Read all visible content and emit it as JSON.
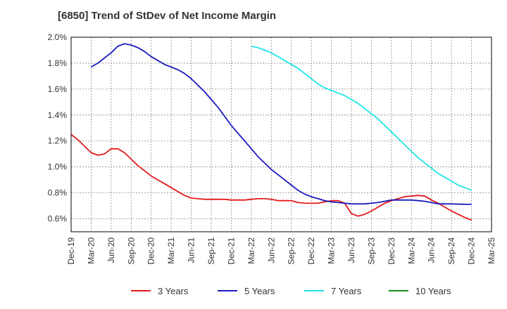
{
  "chart_data": {
    "type": "line",
    "title": "[6850]  Trend of StDev of Net Income Margin",
    "xlabel": "",
    "ylabel": "",
    "x_ticks": [
      "Dec-19",
      "Mar-20",
      "Jun-20",
      "Sep-20",
      "Dec-20",
      "Mar-21",
      "Jun-21",
      "Sep-21",
      "Dec-21",
      "Mar-22",
      "Jun-22",
      "Sep-22",
      "Dec-22",
      "Mar-23",
      "Jun-23",
      "Sep-23",
      "Dec-23",
      "Mar-24",
      "Jun-24",
      "Sep-24",
      "Dec-24",
      "Mar-25"
    ],
    "y_ticks": [
      "0.6%",
      "0.8%",
      "1.0%",
      "1.2%",
      "1.4%",
      "1.6%",
      "1.8%",
      "2.0%"
    ],
    "ylim": [
      0.5,
      2.0
    ],
    "grid": true,
    "legend_position": "bottom",
    "series": [
      {
        "name": "3 Years",
        "color": "#e31a1c",
        "points": [
          [
            "Dec-19",
            1.25
          ],
          [
            "Jan-20",
            1.21
          ],
          [
            "Feb-20",
            1.16
          ],
          [
            "Mar-20",
            1.11
          ],
          [
            "Apr-20",
            1.09
          ],
          [
            "May-20",
            1.1
          ],
          [
            "Jun-20",
            1.14
          ],
          [
            "Jul-20",
            1.14
          ],
          [
            "Aug-20",
            1.11
          ],
          [
            "Sep-20",
            1.06
          ],
          [
            "Oct-20",
            1.01
          ],
          [
            "Nov-20",
            0.97
          ],
          [
            "Dec-20",
            0.93
          ],
          [
            "Jan-21",
            0.9
          ],
          [
            "Feb-21",
            0.87
          ],
          [
            "Mar-21",
            0.84
          ],
          [
            "Apr-21",
            0.81
          ],
          [
            "May-21",
            0.78
          ],
          [
            "Jun-21",
            0.76
          ],
          [
            "Jul-21",
            0.755
          ],
          [
            "Aug-21",
            0.75
          ],
          [
            "Sep-21",
            0.75
          ],
          [
            "Oct-21",
            0.75
          ],
          [
            "Nov-21",
            0.75
          ],
          [
            "Dec-21",
            0.745
          ],
          [
            "Jan-22",
            0.745
          ],
          [
            "Feb-22",
            0.745
          ],
          [
            "Mar-22",
            0.75
          ],
          [
            "Apr-22",
            0.755
          ],
          [
            "May-22",
            0.755
          ],
          [
            "Jun-22",
            0.75
          ],
          [
            "Jul-22",
            0.74
          ],
          [
            "Aug-22",
            0.74
          ],
          [
            "Sep-22",
            0.74
          ],
          [
            "Oct-22",
            0.725
          ],
          [
            "Nov-22",
            0.72
          ],
          [
            "Dec-22",
            0.72
          ],
          [
            "Jan-23",
            0.72
          ],
          [
            "Feb-23",
            0.73
          ],
          [
            "Mar-23",
            0.74
          ],
          [
            "Apr-23",
            0.74
          ],
          [
            "May-23",
            0.72
          ],
          [
            "Jun-23",
            0.64
          ],
          [
            "Jul-23",
            0.62
          ],
          [
            "Aug-23",
            0.635
          ],
          [
            "Sep-23",
            0.66
          ],
          [
            "Oct-23",
            0.69
          ],
          [
            "Nov-23",
            0.72
          ],
          [
            "Dec-23",
            0.74
          ],
          [
            "Jan-24",
            0.755
          ],
          [
            "Feb-24",
            0.77
          ],
          [
            "Mar-24",
            0.775
          ],
          [
            "Apr-24",
            0.78
          ],
          [
            "May-24",
            0.775
          ],
          [
            "Jun-24",
            0.745
          ],
          [
            "Jul-24",
            0.72
          ],
          [
            "Aug-24",
            0.69
          ],
          [
            "Sep-24",
            0.66
          ],
          [
            "Oct-24",
            0.635
          ],
          [
            "Nov-24",
            0.61
          ],
          [
            "Dec-24",
            0.59
          ]
        ]
      },
      {
        "name": "5 Years",
        "color": "#1a1abf",
        "points": [
          [
            "Mar-20",
            1.77
          ],
          [
            "Apr-20",
            1.8
          ],
          [
            "May-20",
            1.84
          ],
          [
            "Jun-20",
            1.88
          ],
          [
            "Jul-20",
            1.93
          ],
          [
            "Aug-20",
            1.95
          ],
          [
            "Sep-20",
            1.94
          ],
          [
            "Oct-20",
            1.92
          ],
          [
            "Nov-20",
            1.89
          ],
          [
            "Dec-20",
            1.85
          ],
          [
            "Jan-21",
            1.82
          ],
          [
            "Feb-21",
            1.79
          ],
          [
            "Mar-21",
            1.77
          ],
          [
            "Apr-21",
            1.75
          ],
          [
            "May-21",
            1.72
          ],
          [
            "Jun-21",
            1.68
          ],
          [
            "Jul-21",
            1.63
          ],
          [
            "Aug-21",
            1.58
          ],
          [
            "Sep-21",
            1.52
          ],
          [
            "Oct-21",
            1.46
          ],
          [
            "Nov-21",
            1.39
          ],
          [
            "Dec-21",
            1.32
          ],
          [
            "Jan-22",
            1.26
          ],
          [
            "Feb-22",
            1.2
          ],
          [
            "Mar-22",
            1.14
          ],
          [
            "Apr-22",
            1.08
          ],
          [
            "May-22",
            1.03
          ],
          [
            "Jun-22",
            0.98
          ],
          [
            "Jul-22",
            0.94
          ],
          [
            "Aug-22",
            0.9
          ],
          [
            "Sep-22",
            0.86
          ],
          [
            "Oct-22",
            0.82
          ],
          [
            "Nov-22",
            0.79
          ],
          [
            "Dec-22",
            0.77
          ],
          [
            "Jan-23",
            0.755
          ],
          [
            "Feb-23",
            0.74
          ],
          [
            "Mar-23",
            0.73
          ],
          [
            "Apr-23",
            0.725
          ],
          [
            "May-23",
            0.72
          ],
          [
            "Jun-23",
            0.715
          ],
          [
            "Jul-23",
            0.715
          ],
          [
            "Aug-23",
            0.715
          ],
          [
            "Sep-23",
            0.72
          ],
          [
            "Oct-23",
            0.725
          ],
          [
            "Nov-23",
            0.735
          ],
          [
            "Dec-23",
            0.745
          ],
          [
            "Jan-24",
            0.745
          ],
          [
            "Feb-24",
            0.745
          ],
          [
            "Mar-24",
            0.745
          ],
          [
            "Apr-24",
            0.74
          ],
          [
            "May-24",
            0.735
          ],
          [
            "Jun-24",
            0.725
          ],
          [
            "Jul-24",
            0.715
          ],
          [
            "Aug-24",
            0.715
          ],
          [
            "Sep-24",
            0.715
          ],
          [
            "Oct-24",
            0.713
          ],
          [
            "Nov-24",
            0.712
          ],
          [
            "Dec-24",
            0.711
          ]
        ]
      },
      {
        "name": "7 Years",
        "color": "#1ee6e6",
        "points": [
          [
            "Mar-22",
            1.93
          ],
          [
            "Apr-22",
            1.92
          ],
          [
            "May-22",
            1.9
          ],
          [
            "Jun-22",
            1.88
          ],
          [
            "Jul-22",
            1.85
          ],
          [
            "Aug-22",
            1.82
          ],
          [
            "Sep-22",
            1.79
          ],
          [
            "Oct-22",
            1.76
          ],
          [
            "Nov-22",
            1.72
          ],
          [
            "Dec-22",
            1.68
          ],
          [
            "Jan-23",
            1.64
          ],
          [
            "Feb-23",
            1.61
          ],
          [
            "Mar-23",
            1.59
          ],
          [
            "Apr-23",
            1.57
          ],
          [
            "May-23",
            1.55
          ],
          [
            "Jun-23",
            1.52
          ],
          [
            "Jul-23",
            1.49
          ],
          [
            "Aug-23",
            1.45
          ],
          [
            "Sep-23",
            1.41
          ],
          [
            "Oct-23",
            1.37
          ],
          [
            "Nov-23",
            1.32
          ],
          [
            "Dec-23",
            1.27
          ],
          [
            "Jan-24",
            1.22
          ],
          [
            "Feb-24",
            1.17
          ],
          [
            "Mar-24",
            1.12
          ],
          [
            "Apr-24",
            1.07
          ],
          [
            "May-24",
            1.03
          ],
          [
            "Jun-24",
            0.99
          ],
          [
            "Jul-24",
            0.95
          ],
          [
            "Aug-24",
            0.92
          ],
          [
            "Sep-24",
            0.89
          ],
          [
            "Oct-24",
            0.86
          ],
          [
            "Nov-24",
            0.84
          ],
          [
            "Dec-24",
            0.82
          ]
        ]
      },
      {
        "name": "10 Years",
        "color": "#1a8c1a",
        "points": []
      }
    ]
  }
}
